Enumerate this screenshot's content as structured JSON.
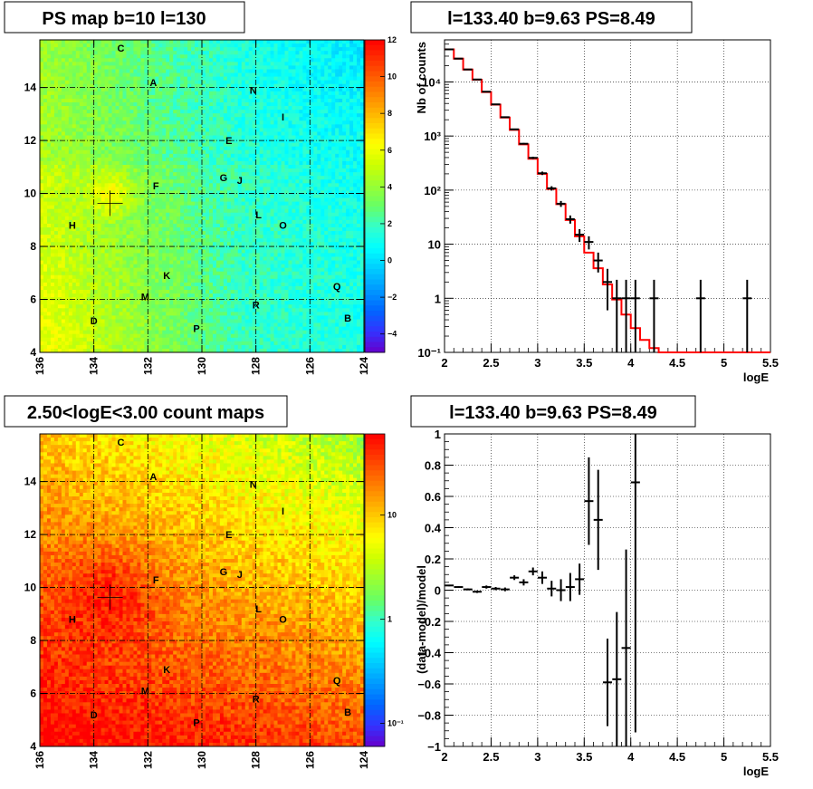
{
  "chart_data": [
    {
      "id": "psmap",
      "type": "heatmap",
      "title": "PS map b=10 l=130",
      "x_ticks": [
        "136",
        "134",
        "132",
        "130",
        "128",
        "126",
        "124"
      ],
      "y_ticks": [
        "4",
        "6",
        "8",
        "10",
        "12",
        "14"
      ],
      "xlim": [
        136,
        124
      ],
      "ylim": [
        4,
        15.8
      ],
      "z_ticks": [
        "12",
        "10",
        "8",
        "6",
        "4",
        "2",
        "0",
        "−2",
        "−4"
      ],
      "zlim": [
        -5,
        12
      ],
      "marker": {
        "x": 133.4,
        "y": 9.63
      },
      "sources": [
        {
          "label": "C",
          "x": 133.0,
          "y": 15.5
        },
        {
          "label": "A",
          "x": 131.8,
          "y": 14.2
        },
        {
          "label": "N",
          "x": 128.1,
          "y": 13.9
        },
        {
          "label": "I",
          "x": 127.0,
          "y": 12.9
        },
        {
          "label": "E",
          "x": 129.0,
          "y": 12.0
        },
        {
          "label": "G",
          "x": 129.2,
          "y": 10.6
        },
        {
          "label": "J",
          "x": 128.6,
          "y": 10.5
        },
        {
          "label": "F",
          "x": 131.7,
          "y": 10.3
        },
        {
          "label": "L",
          "x": 127.9,
          "y": 9.2
        },
        {
          "label": "H",
          "x": 134.8,
          "y": 8.8
        },
        {
          "label": "O",
          "x": 127.0,
          "y": 8.8
        },
        {
          "label": "K",
          "x": 131.3,
          "y": 6.9
        },
        {
          "label": "Q",
          "x": 125.0,
          "y": 6.5
        },
        {
          "label": "M",
          "x": 132.1,
          "y": 6.1
        },
        {
          "label": "R",
          "x": 128.0,
          "y": 5.8
        },
        {
          "label": "D",
          "x": 134.0,
          "y": 5.2
        },
        {
          "label": "B",
          "x": 124.6,
          "y": 5.3
        },
        {
          "label": "P",
          "x": 130.2,
          "y": 4.9
        }
      ]
    },
    {
      "id": "spectrum",
      "type": "line",
      "title": "l=133.40 b=9.63 PS=8.49",
      "xlabel": "logE",
      "ylabel": "Nb of counts",
      "xlim": [
        2,
        5.5
      ],
      "ylim": [
        0.1,
        60000
      ],
      "log_y": true,
      "x_ticks": [
        "2",
        "2.5",
        "3",
        "3.5",
        "4",
        "4.5",
        "5",
        "5.5"
      ],
      "y_ticks": [
        {
          "v": 0.1,
          "t": "10⁻¹"
        },
        {
          "v": 1,
          "t": "1"
        },
        {
          "v": 10,
          "t": "10"
        },
        {
          "v": 100,
          "t": "10²"
        },
        {
          "v": 1000,
          "t": "10³"
        },
        {
          "v": 10000,
          "t": "10⁴"
        }
      ],
      "model_color": "#ff0000",
      "model_edges": [
        2,
        2.1,
        2.2,
        2.3,
        2.4,
        2.5,
        2.6,
        2.7,
        2.8,
        2.9,
        3.0,
        3.1,
        3.2,
        3.3,
        3.4,
        3.5,
        3.6,
        3.7,
        3.8,
        3.9,
        4.0,
        4.1,
        4.2,
        4.3,
        4.4,
        4.5,
        4.6,
        4.7,
        4.8,
        4.9,
        5.0,
        5.1,
        5.2,
        5.3,
        5.4,
        5.5
      ],
      "model_values": [
        40000,
        27000,
        17000,
        11000,
        6500,
        3800,
        2200,
        1300,
        700,
        380,
        200,
        105,
        55,
        28,
        14,
        7,
        3.6,
        1.8,
        0.95,
        0.5,
        0.28,
        0.17,
        0.12,
        0.1,
        0.1,
        0.1,
        0.1,
        0.1,
        0.1,
        0.1,
        0.1,
        0.1,
        0.1,
        0.1,
        0.1
      ],
      "data_points": [
        {
          "x": 2.05,
          "y": 40000,
          "lo": 39000,
          "hi": 41000
        },
        {
          "x": 2.15,
          "y": 27000,
          "lo": 26500,
          "hi": 27500
        },
        {
          "x": 2.25,
          "y": 17000,
          "lo": 16700,
          "hi": 17300
        },
        {
          "x": 2.35,
          "y": 11100,
          "lo": 10900,
          "hi": 11300
        },
        {
          "x": 2.45,
          "y": 6600,
          "lo": 6450,
          "hi": 6750
        },
        {
          "x": 2.55,
          "y": 3850,
          "lo": 3750,
          "hi": 3950
        },
        {
          "x": 2.65,
          "y": 2230,
          "lo": 2180,
          "hi": 2280
        },
        {
          "x": 2.75,
          "y": 1330,
          "lo": 1290,
          "hi": 1370
        },
        {
          "x": 2.85,
          "y": 720,
          "lo": 700,
          "hi": 745
        },
        {
          "x": 2.95,
          "y": 395,
          "lo": 375,
          "hi": 415
        },
        {
          "x": 3.05,
          "y": 205,
          "lo": 190,
          "hi": 220
        },
        {
          "x": 3.15,
          "y": 108,
          "lo": 98,
          "hi": 118
        },
        {
          "x": 3.25,
          "y": 56,
          "lo": 49,
          "hi": 63
        },
        {
          "x": 3.35,
          "y": 29,
          "lo": 24,
          "hi": 34
        },
        {
          "x": 3.45,
          "y": 15,
          "lo": 11,
          "hi": 19
        },
        {
          "x": 3.55,
          "y": 11,
          "lo": 8,
          "hi": 14
        },
        {
          "x": 3.65,
          "y": 5,
          "lo": 3,
          "hi": 7
        },
        {
          "x": 3.75,
          "y": 2,
          "lo": 0.6,
          "hi": 3.5
        },
        {
          "x": 3.85,
          "y": 1,
          "lo": 0.1,
          "hi": 2.2
        },
        {
          "x": 3.95,
          "y": 1,
          "lo": 0.1,
          "hi": 2.2
        },
        {
          "x": 4.05,
          "y": 1,
          "lo": 0.1,
          "hi": 2.2
        },
        {
          "x": 4.25,
          "y": 1,
          "lo": 0.1,
          "hi": 2.2
        },
        {
          "x": 4.75,
          "y": 1,
          "lo": 0.1,
          "hi": 2.2
        },
        {
          "x": 5.25,
          "y": 1,
          "lo": 0.1,
          "hi": 2.2
        }
      ]
    },
    {
      "id": "countmap",
      "type": "heatmap",
      "title": "2.50<logE<3.00 count maps",
      "x_ticks": [
        "136",
        "134",
        "132",
        "130",
        "128",
        "126",
        "124"
      ],
      "y_ticks": [
        "4",
        "6",
        "8",
        "10",
        "12",
        "14"
      ],
      "xlim": [
        136,
        124
      ],
      "ylim": [
        4,
        15.8
      ],
      "z_ticks": [
        {
          "v": 10,
          "t": "10"
        },
        {
          "v": 1,
          "t": "1"
        },
        {
          "v": 0.1,
          "t": "10⁻¹"
        }
      ],
      "zlim": [
        0.06,
        60
      ],
      "log_z": true,
      "marker": {
        "x": 133.4,
        "y": 9.63
      }
    },
    {
      "id": "residuals",
      "type": "scatter",
      "title": "l=133.40 b=9.63 PS=8.49",
      "xlabel": "logE",
      "ylabel": "(data-model)/model",
      "xlim": [
        2,
        5.5
      ],
      "ylim": [
        -1,
        1
      ],
      "x_ticks": [
        "2",
        "2.5",
        "3",
        "3.5",
        "4",
        "4.5",
        "5",
        "5.5"
      ],
      "y_ticks": [
        "−1",
        "−0.8",
        "−0.6",
        "−0.4",
        "−0.2",
        "0",
        "0.2",
        "0.4",
        "0.6",
        "0.8",
        "1"
      ],
      "data_points": [
        {
          "x": 2.05,
          "y": 0.03,
          "e": 0.005
        },
        {
          "x": 2.15,
          "y": 0.02,
          "e": 0.005
        },
        {
          "x": 2.25,
          "y": 0.005,
          "e": 0.006
        },
        {
          "x": 2.35,
          "y": -0.01,
          "e": 0.008
        },
        {
          "x": 2.45,
          "y": 0.02,
          "e": 0.01
        },
        {
          "x": 2.55,
          "y": 0.01,
          "e": 0.01
        },
        {
          "x": 2.65,
          "y": 0.005,
          "e": 0.012
        },
        {
          "x": 2.75,
          "y": 0.08,
          "e": 0.015
        },
        {
          "x": 2.85,
          "y": 0.05,
          "e": 0.02
        },
        {
          "x": 2.95,
          "y": 0.12,
          "e": 0.025
        },
        {
          "x": 3.05,
          "y": 0.08,
          "e": 0.04
        },
        {
          "x": 3.15,
          "y": 0.01,
          "e": 0.05
        },
        {
          "x": 3.25,
          "y": 0.0,
          "e": 0.07
        },
        {
          "x": 3.35,
          "y": 0.02,
          "e": 0.09
        },
        {
          "x": 3.45,
          "y": 0.07,
          "e": 0.1
        },
        {
          "x": 3.55,
          "y": 0.57,
          "e": 0.28
        },
        {
          "x": 3.65,
          "y": 0.45,
          "e": 0.32
        },
        {
          "x": 3.75,
          "y": -0.59,
          "e": 0.28
        },
        {
          "x": 3.85,
          "y": -0.57,
          "e": 0.43
        },
        {
          "x": 3.95,
          "y": -0.37,
          "e": 0.63
        },
        {
          "x": 4.05,
          "y": 0.69,
          "e": 1.6
        }
      ]
    }
  ]
}
